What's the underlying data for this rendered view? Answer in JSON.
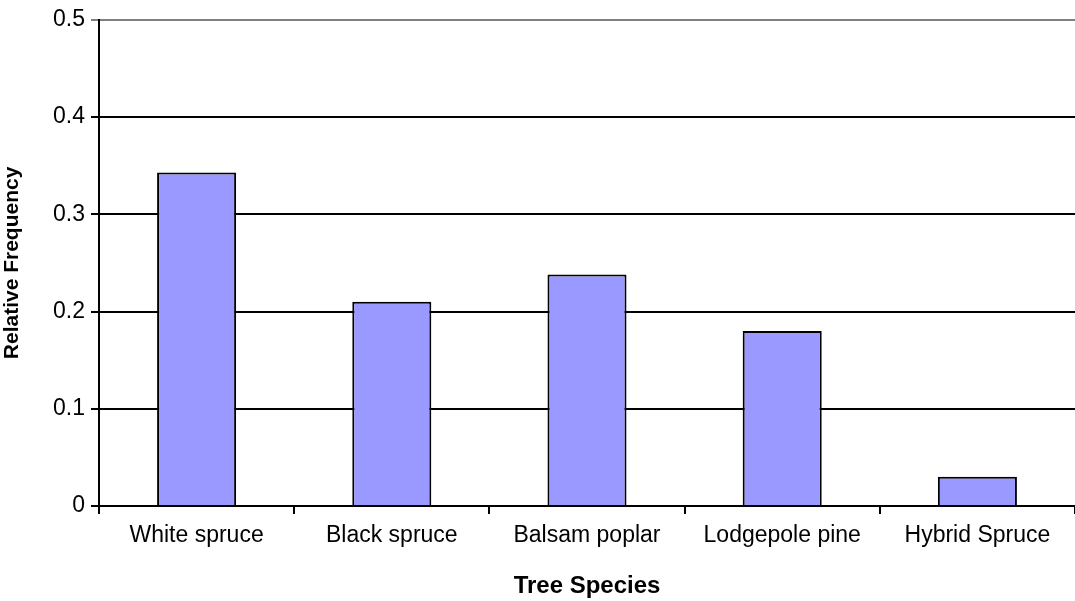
{
  "chart_data": {
    "type": "bar",
    "xlabel": "Tree Species",
    "ylabel": "Relative Frequency",
    "categories": [
      "White spruce",
      "Black spruce",
      "Balsam poplar",
      "Lodgepole pine",
      "Hybrid Spruce"
    ],
    "values": [
      0.343,
      0.21,
      0.238,
      0.18,
      0.03
    ],
    "color": "#9999ff",
    "ylim": [
      0,
      0.5
    ],
    "yticks": [
      0,
      0.1,
      0.2,
      0.3,
      0.4,
      0.5
    ],
    "grid": "y"
  }
}
